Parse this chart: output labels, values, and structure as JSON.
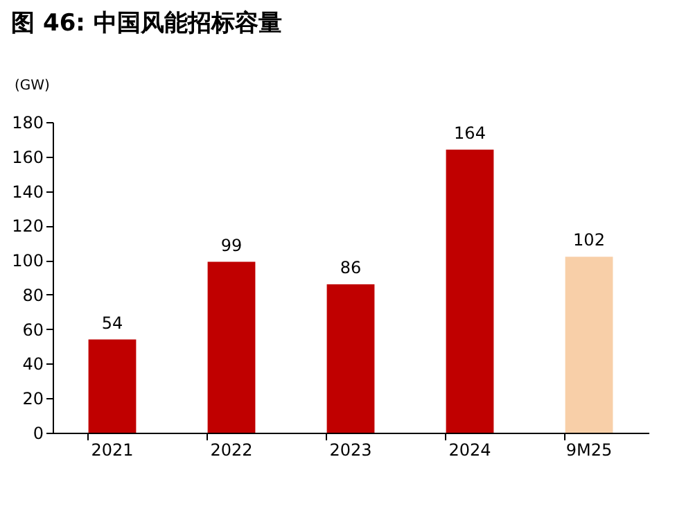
{
  "chart_data": {
    "type": "bar",
    "title": "图 46: 中国风能招标容量",
    "ylabel": "(GW)",
    "categories": [
      "2021",
      "2022",
      "2023",
      "2024",
      "9M25"
    ],
    "values": [
      54,
      99,
      86,
      164,
      102
    ],
    "colors": [
      "#c00000",
      "#c00000",
      "#c00000",
      "#c00000",
      "#f8cfa8"
    ],
    "ylim": [
      0,
      180
    ],
    "yticks": [
      0,
      20,
      40,
      60,
      80,
      100,
      120,
      140,
      160,
      180
    ],
    "data_labels": true,
    "grid": false
  }
}
